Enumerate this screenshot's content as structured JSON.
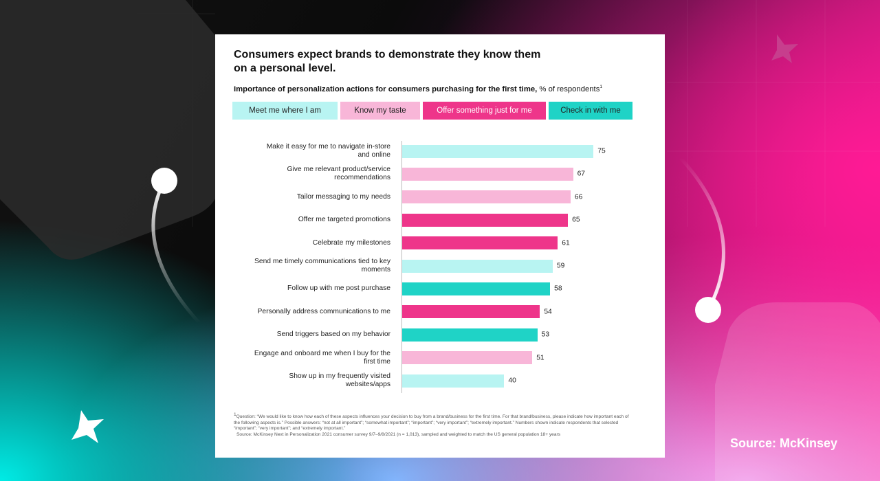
{
  "brand_source": "Source: McKinsey",
  "chart_data": {
    "type": "bar",
    "orientation": "horizontal",
    "title": "Consumers expect brands to demonstrate they know them on a personal level.",
    "subtitle": "Importance of personalization actions for consumers purchasing for the first time,",
    "unit_label": "% of respondents",
    "footnote_marker": "1",
    "legend": [
      {
        "name": "Meet me where I am",
        "color": "#b8f4f2"
      },
      {
        "name": "Know my taste",
        "color": "#f8b6d8"
      },
      {
        "name": "Offer something just for me",
        "color": "#ee358a"
      },
      {
        "name": "Check in with me",
        "color": "#1fd3c6"
      }
    ],
    "categories": [
      "Make it easy for me to navigate in-store and online",
      "Give me relevant product/service recommendations",
      "Tailor messaging to my needs",
      "Offer me targeted promotions",
      "Celebrate my milestones",
      "Send me timely communications tied to key moments",
      "Follow up with me post purchase",
      "Personally address communications to me",
      "Send triggers based on my behavior",
      "Engage and onboard me when I buy for the first time",
      "Show up in my frequently visited websites/apps"
    ],
    "values": [
      75,
      67,
      66,
      65,
      61,
      59,
      58,
      54,
      53,
      51,
      40
    ],
    "colors": [
      "#b8f4f2",
      "#f8b6d8",
      "#f8b6d8",
      "#ee358a",
      "#ee358a",
      "#b8f4f2",
      "#1fd3c6",
      "#ee358a",
      "#1fd3c6",
      "#f8b6d8",
      "#b8f4f2"
    ],
    "footnote": "Question: “We would like to know how each of these aspects influences your decision to buy from a brand/business for the first time. For that brand/business, please indicate how important each of the following aspects is.” Possible answers: “not at all important”; “somewhat important”; “important”; “very important”; “extremely important.” Numbers shown indicate respondents that selected “important”; “very important”; and “extremely important.”",
    "source": "Source: McKinsey Next in Personalization 2021 consumer survey 9/7–9/8/2021 (n = 1,013), sampled and weighted to match the US general population 18+ years"
  }
}
